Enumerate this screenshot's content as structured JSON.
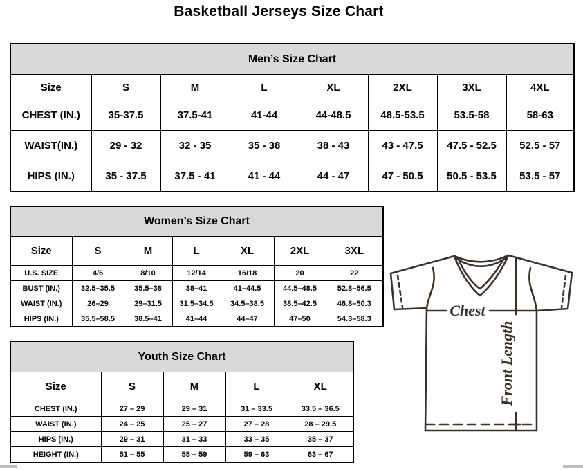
{
  "page": {
    "title": "Basketball Jerseys Size Chart"
  },
  "mens_chart": {
    "title": "Men’s Size Chart",
    "header": [
      "Size",
      "S",
      "M",
      "L",
      "XL",
      "2XL",
      "3XL",
      "4XL"
    ],
    "rows": [
      {
        "label": "CHEST (IN.)",
        "values": [
          "35-37.5",
          "37.5-41",
          "41-44",
          "44-48.5",
          "48.5-53.5",
          "53.5-58",
          "58-63"
        ]
      },
      {
        "label": "WAIST(IN.)",
        "values": [
          "29 - 32",
          "32 - 35",
          "35 - 38",
          "38 - 43",
          "43 - 47.5",
          "47.5 - 52.5",
          "52.5 - 57"
        ]
      },
      {
        "label": "HIPS (IN.)",
        "values": [
          "35 - 37.5",
          "37.5 - 41",
          "41 - 44",
          "44 - 47",
          "47 - 50.5",
          "50.5 - 53.5",
          "53.5 - 57"
        ]
      }
    ]
  },
  "womens_chart": {
    "title": "Women’s Size Chart",
    "header": [
      "Size",
      "S",
      "M",
      "L",
      "XL",
      "2XL",
      "3XL"
    ],
    "rows": [
      {
        "label": "U.S. SIZE",
        "values": [
          "4/6",
          "8/10",
          "12/14",
          "16/18",
          "20",
          "22"
        ]
      },
      {
        "label": "BUST (IN.)",
        "values": [
          "32.5–35.5",
          "35.5–38",
          "38–41",
          "41–44.5",
          "44.5–48.5",
          "52.8–56.5"
        ]
      },
      {
        "label": "WAIST (IN.)",
        "values": [
          "26–29",
          "29–31.5",
          "31.5–34.5",
          "34.5–38.5",
          "38.5–42.5",
          "46.8–50.3"
        ]
      },
      {
        "label": "HIPS (IN.)",
        "values": [
          "35.5–58.5",
          "38.5–41",
          "41–44",
          "44–47",
          "47–50",
          "54.3–58.3"
        ]
      }
    ]
  },
  "youth_chart": {
    "title": "Youth Size Chart",
    "header": [
      "Size",
      "S",
      "M",
      "L",
      "XL"
    ],
    "rows": [
      {
        "label": "CHEST (IN.)",
        "values": [
          "27 – 29",
          "29 – 31",
          "31 – 33.5",
          "33.5 – 36.5"
        ]
      },
      {
        "label": "WAIST (IN.)",
        "values": [
          "24 – 25",
          "25 – 27",
          "27 – 28",
          "28 – 29.5"
        ]
      },
      {
        "label": "HIPS (IN.)",
        "values": [
          "29 – 31",
          "31 – 33",
          "33 – 35",
          "35 – 37"
        ]
      },
      {
        "label": "HEIGHT (IN.)",
        "values": [
          "51 – 55",
          "55 – 59",
          "59 – 63",
          "63 – 67"
        ]
      }
    ]
  },
  "diagram": {
    "chest_label": "Chest",
    "front_length_label": "Front Length"
  },
  "colors": {
    "table_header_bg": "#d9d9d9",
    "table_border": "#000000",
    "diagram_stroke": "#3a322c",
    "text": "#000000"
  }
}
